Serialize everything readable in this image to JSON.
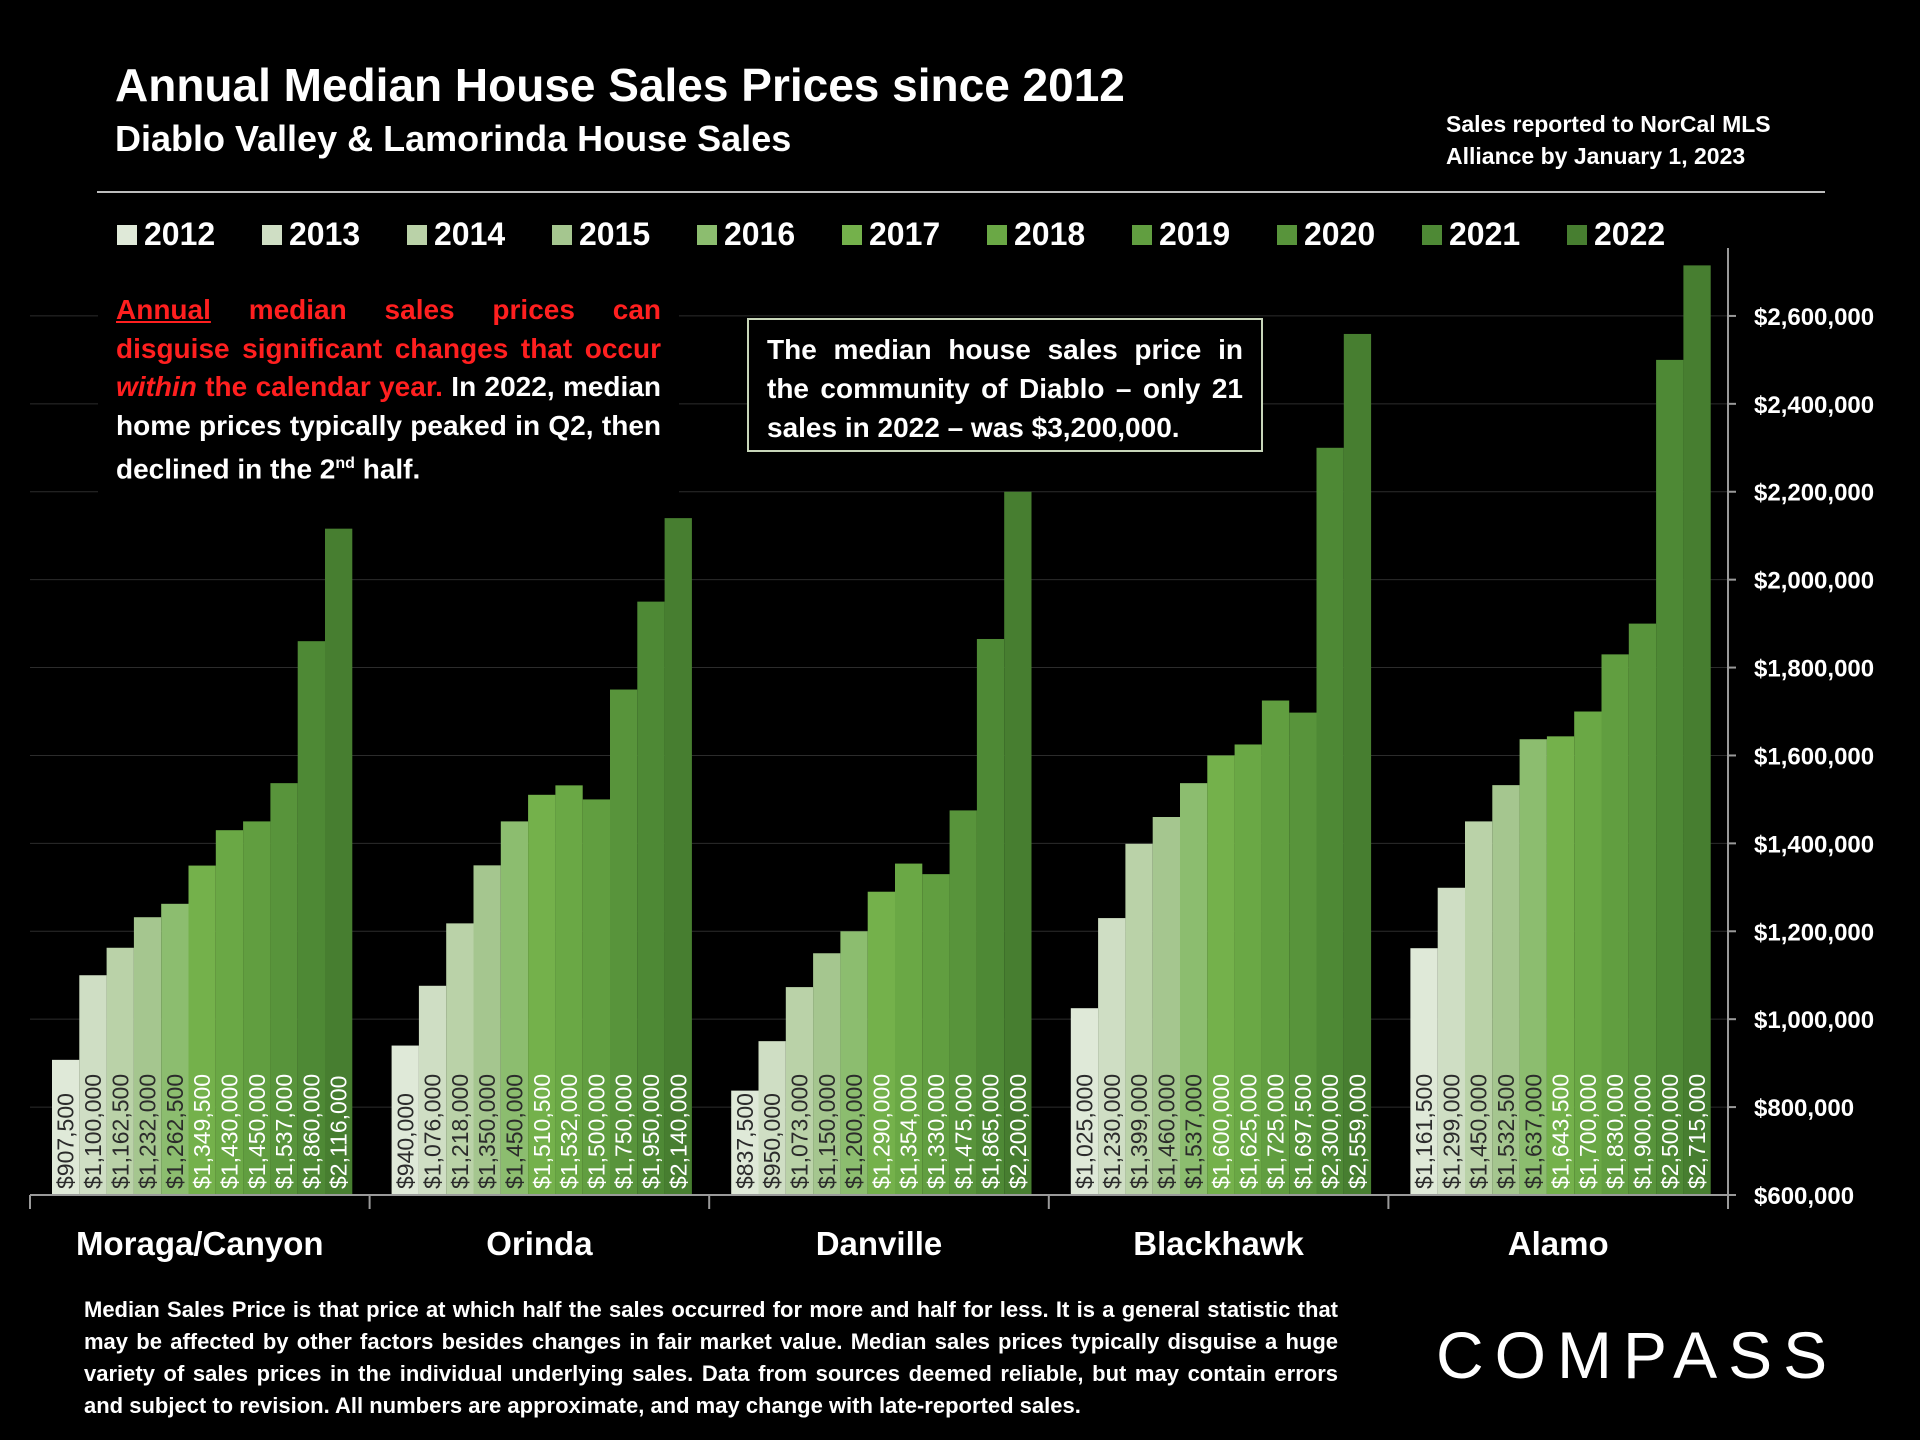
{
  "title": "Annual Median House Sales Prices since 2012",
  "subtitle": "Diablo Valley & Lamorinda House Sales",
  "source_note": "Sales reported to NorCal MLS Alliance by January 1, 2023",
  "legend": [
    "2012",
    "2013",
    "2014",
    "2015",
    "2016",
    "2017",
    "2018",
    "2019",
    "2020",
    "2021",
    "2022"
  ],
  "series_colors": [
    "#dfe9d8",
    "#cfdec4",
    "#bad2a8",
    "#a5c68f",
    "#8cbd6f",
    "#74b14b",
    "#6aa845",
    "#619e40",
    "#58943b",
    "#4e8935",
    "#477e30"
  ],
  "note_red": {
    "part1": "Annual",
    "part2": " median sales prices can disguise significant changes that occur ",
    "part3": "within",
    "part4": " the calendar year.",
    "part5": " In 2022, median home prices typically peaked in Q2, then declined in the 2",
    "sup": "nd",
    "part6": " half."
  },
  "note_box": "The median house sales price in the community of Diablo – only 21 sales in 2022 – was $3,200,000.",
  "footer": "Median Sales Price is that price at which half the sales occurred for more and half for less. It is a general statistic that may be affected by other factors besides changes in fair market value. Median sales prices typically disguise a huge variety of sales prices in the individual underlying sales. Data from sources deemed reliable, but may contain errors and subject to revision.  All numbers are approximate, and may change with late-reported sales.",
  "logo": {
    "text": "COMPASS"
  },
  "chart_data": {
    "type": "bar",
    "title": "Annual Median House Sales Prices since 2012",
    "categories": [
      "Moraga/Canyon",
      "Orinda",
      "Danville",
      "Blackhawk",
      "Alamo"
    ],
    "ylim": [
      600000,
      2750000
    ],
    "yticks": [
      600000,
      800000,
      1000000,
      1200000,
      1400000,
      1600000,
      1800000,
      2000000,
      2200000,
      2400000,
      2600000
    ],
    "ytick_labels": [
      "$600,000",
      "$800,000",
      "$1,000,000",
      "$1,200,000",
      "$1,400,000",
      "$1,600,000",
      "$1,800,000",
      "$2,000,000",
      "$2,200,000",
      "$2,400,000",
      "$2,600,000"
    ],
    "legend_position": "top",
    "series_names": [
      "2012",
      "2013",
      "2014",
      "2015",
      "2016",
      "2017",
      "2018",
      "2019",
      "2020",
      "2021",
      "2022"
    ],
    "groups": [
      {
        "name": "Moraga/Canyon",
        "values": [
          907500,
          1100000,
          1162500,
          1232000,
          1262500,
          1349500,
          1430000,
          1450000,
          1537000,
          1860000,
          2116000
        ],
        "labels": [
          "$907,500",
          "$1,100,000",
          "$1,162,500",
          "$1,232,000",
          "$1,262,500",
          "$1,349,500",
          "$1,430,000",
          "$1,450,000",
          "$1,537,000",
          "$1,860,000",
          "$2,116,000"
        ]
      },
      {
        "name": "Orinda",
        "values": [
          940000,
          1076000,
          1218000,
          1350000,
          1450000,
          1510500,
          1532000,
          1500000,
          1750000,
          1950000,
          2140000
        ],
        "labels": [
          "$940,000",
          "$1,076,000",
          "$1,218,000",
          "$1,350,000",
          "$1,450,000",
          "$1,510,500",
          "$1,532,000",
          "$1,500,000",
          "$1,750,000",
          "$1,950,000",
          "$2,140,000"
        ]
      },
      {
        "name": "Danville",
        "values": [
          837500,
          950000,
          1073000,
          1150000,
          1200000,
          1290000,
          1354000,
          1330000,
          1475000,
          1865000,
          2200000
        ],
        "labels": [
          "$837,500",
          "$950,000",
          "$1,073,000",
          "$1,150,000",
          "$1,200,000",
          "$1,290,000",
          "$1,354,000",
          "$1,330,000",
          "$1,475,000",
          "$1,865,000",
          "$2,200,000"
        ]
      },
      {
        "name": "Blackhawk",
        "values": [
          1025000,
          1230000,
          1399000,
          1460000,
          1537000,
          1600000,
          1625000,
          1725000,
          1697500,
          2300000,
          2559000
        ],
        "labels": [
          "$1,025,000",
          "$1,230,000",
          "$1,399,000",
          "$1,460,000",
          "$1,537,000",
          "$1,600,000",
          "$1,625,000",
          "$1,725,000",
          "$1,697,500",
          "$2,300,000",
          "$2,559,000"
        ]
      },
      {
        "name": "Alamo",
        "values": [
          1161500,
          1299000,
          1450000,
          1532500,
          1637000,
          1643500,
          1700000,
          1830000,
          1900000,
          2500000,
          2715000
        ],
        "labels": [
          "$1,161,500",
          "$1,299,000",
          "$1,450,000",
          "$1,532,500",
          "$1,637,000",
          "$1,643,500",
          "$1,700,000",
          "$1,830,000",
          "$1,900,000",
          "$2,500,000",
          "$2,715,000"
        ]
      }
    ]
  }
}
